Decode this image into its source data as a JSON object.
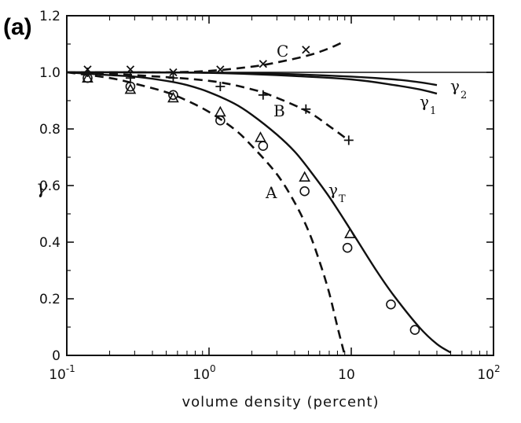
{
  "chart_data": {
    "type": "line",
    "panel_label": "(a)",
    "xlabel": "volume density (percent)",
    "ylabel": "γ",
    "xscale": "log",
    "xlim": [
      0.1,
      100
    ],
    "ylim": [
      0,
      1.2
    ],
    "x_ticks": [
      {
        "value": 0.1,
        "base": "10",
        "exp": "-1"
      },
      {
        "value": 1,
        "base": "10",
        "exp": "0"
      },
      {
        "value": 10,
        "base": "10",
        "exp": ""
      },
      {
        "value": 100,
        "base": "10",
        "exp": "2"
      }
    ],
    "y_ticks": [
      {
        "value": 0,
        "label": "0"
      },
      {
        "value": 0.2,
        "label": "0.2"
      },
      {
        "value": 0.4,
        "label": "0.4"
      },
      {
        "value": 0.6,
        "label": "0.6"
      },
      {
        "value": 0.8,
        "label": "0.8"
      },
      {
        "value": 1.0,
        "label": "1.0"
      },
      {
        "value": 1.2,
        "label": "1.2"
      }
    ],
    "reference_line": {
      "y": 1.0
    },
    "series": [
      {
        "key": "gamma1",
        "name": "γ",
        "sub": "1",
        "style": "solid",
        "x": [
          0.1,
          0.3,
          1,
          3,
          10,
          20,
          30,
          40
        ],
        "y": [
          1.0,
          1.0,
          0.998,
          0.99,
          0.975,
          0.955,
          0.94,
          0.925
        ]
      },
      {
        "key": "gamma2",
        "name": "γ",
        "sub": "2",
        "style": "solid",
        "x": [
          0.1,
          0.3,
          1,
          3,
          10,
          20,
          30,
          40
        ],
        "y": [
          1.0,
          1.0,
          0.999,
          0.995,
          0.985,
          0.975,
          0.965,
          0.955
        ]
      },
      {
        "key": "gammaT",
        "name": "γ",
        "sub": "T",
        "style": "solid",
        "x": [
          0.1,
          0.2,
          0.3,
          0.5,
          0.7,
          1,
          1.5,
          2,
          3,
          4,
          5,
          7,
          10,
          15,
          20,
          30,
          40,
          50
        ],
        "y": [
          1.0,
          0.99,
          0.985,
          0.97,
          0.955,
          0.93,
          0.89,
          0.85,
          0.78,
          0.72,
          0.66,
          0.56,
          0.44,
          0.3,
          0.21,
          0.1,
          0.04,
          0.01
        ]
      },
      {
        "key": "A",
        "name": "A",
        "style": "dashed",
        "x": [
          0.1,
          0.2,
          0.3,
          0.5,
          0.7,
          1,
          1.5,
          2,
          3,
          4,
          5,
          6,
          7,
          8,
          9
        ],
        "y": [
          1.0,
          0.98,
          0.96,
          0.93,
          0.9,
          0.86,
          0.8,
          0.74,
          0.64,
          0.54,
          0.44,
          0.33,
          0.22,
          0.1,
          0.0
        ]
      },
      {
        "key": "B",
        "name": "B",
        "style": "dashed",
        "x": [
          0.1,
          0.3,
          1,
          2,
          3,
          5,
          7,
          9
        ],
        "y": [
          1.0,
          0.99,
          0.97,
          0.94,
          0.91,
          0.86,
          0.81,
          0.77
        ]
      },
      {
        "key": "C",
        "name": "C",
        "style": "dashed",
        "x": [
          0.1,
          0.3,
          0.5,
          1,
          2,
          3,
          5,
          7,
          9
        ],
        "y": [
          1.0,
          1.0,
          1.0,
          1.005,
          1.02,
          1.035,
          1.06,
          1.085,
          1.11
        ]
      }
    ],
    "markers": [
      {
        "key": "circle",
        "symbol": "o",
        "x": [
          0.14,
          0.28,
          0.56,
          1.2,
          2.4,
          4.7,
          9.4,
          19,
          28
        ],
        "y": [
          0.98,
          0.95,
          0.92,
          0.83,
          0.74,
          0.58,
          0.38,
          0.18,
          0.09
        ]
      },
      {
        "key": "triangle",
        "symbol": "△",
        "x": [
          0.14,
          0.28,
          0.56,
          1.2,
          2.3,
          4.7,
          9.8
        ],
        "y": [
          0.98,
          0.94,
          0.91,
          0.86,
          0.77,
          0.63,
          0.43
        ]
      },
      {
        "key": "plus",
        "symbol": "+",
        "x": [
          0.14,
          0.28,
          0.56,
          1.2,
          2.4,
          4.8,
          9.6
        ],
        "y": [
          1.0,
          0.98,
          0.98,
          0.95,
          0.92,
          0.87,
          0.76
        ]
      },
      {
        "key": "cross",
        "symbol": "×",
        "x": [
          0.14,
          0.28,
          0.56,
          1.2,
          2.4,
          4.8
        ],
        "y": [
          1.01,
          1.01,
          1.0,
          1.01,
          1.03,
          1.08
        ]
      }
    ],
    "grid": false,
    "legend": "none"
  }
}
